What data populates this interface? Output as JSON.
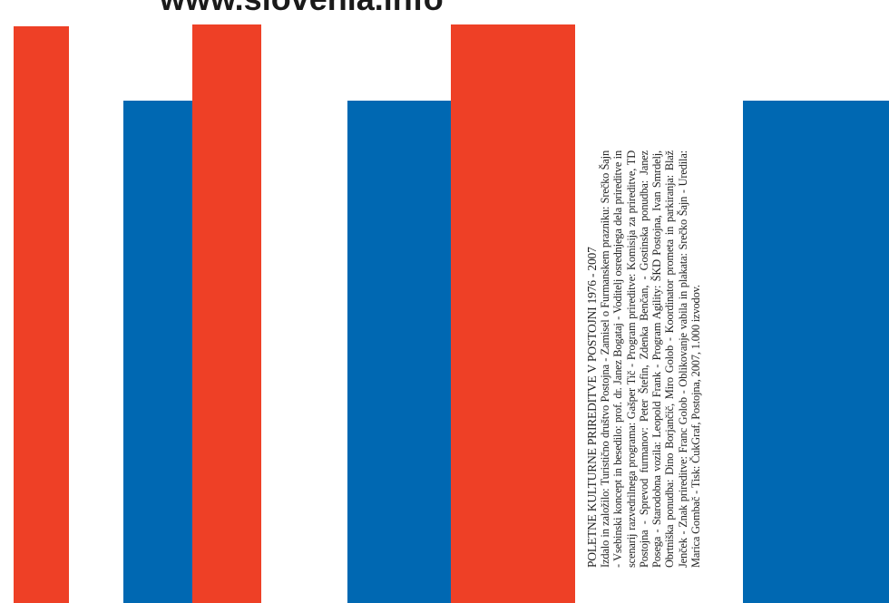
{
  "poster": {
    "url": "www.slovenia.info",
    "colors": {
      "red": "#ee4026",
      "blue": "#0068b2",
      "background": "#ffffff"
    },
    "credits": {
      "title": "POLETNE KULTURNE PRIREDITVE V POSTOJNI 1976 - 2007",
      "body": "Izdalo in založilo: Turistično društvo Postojna - Zamisel o Furmanskem prazniku: Srečko Šajn - Vsebinski koncept in besedilo: prof. dr. Janez Bogataj - Voditelj osrednjega dela prireditve in scenarij razvedrilnega programa: Gašper Tič - Program prireditve: Komisija za prireditve, TD Postojna - Sprevod furmanov: Peter Štefin, Zdenka Benčan, - Gostinska ponudba: Janez Posega - Starodobna vozila: Leopold Frank - Program Agility: ŠKD Postojna, Ivan Smrdelj, Obrtniška ponudba: Dino Borjančič, Miro Golob - Koordinator prometa in parkiranja: Blaž Jenček - Znak prireditve: Franc Golob - Oblikovanje vabila in plakata: Srečko Šajn - Uredila: Marica Gombač - Tisk: ČukGraf, Postojna, 2007, 1.000 izvodov."
    }
  }
}
